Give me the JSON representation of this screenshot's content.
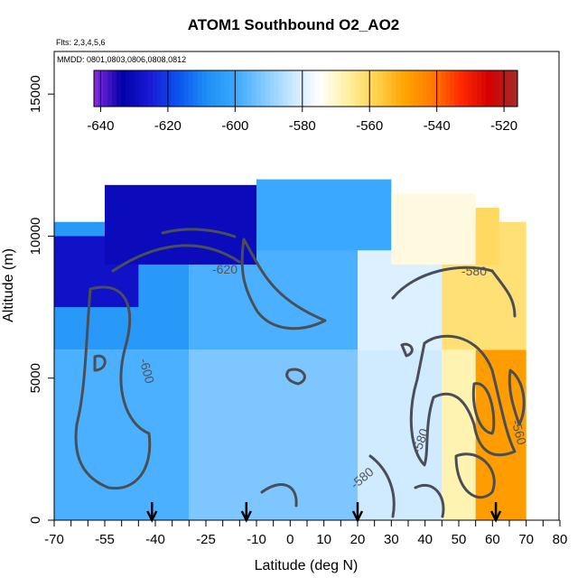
{
  "chart_data": {
    "type": "heatmap",
    "title": "ATOM1 Southbound O2_AO2",
    "flights_note": "Flts: 2,3,4,5,6",
    "dates_note": "MMDD: 0801,0803,0806,0808,0812",
    "xlabel": "Latitude (deg N)",
    "ylabel": "Altitude (m)",
    "xlim": [
      -70,
      80
    ],
    "ylim": [
      0,
      16500
    ],
    "x_ticks": [
      "-70",
      "-55",
      "-40",
      "-25",
      "-10",
      "0",
      "10",
      "20",
      "30",
      "40",
      "50",
      "60",
      "70",
      "80"
    ],
    "y_ticks": [
      "0",
      "5000",
      "10000",
      "15000"
    ],
    "colorbar": {
      "range": [
        -642,
        -516
      ],
      "ticks": [
        "-640",
        "-620",
        "-600",
        "-580",
        "-560",
        "-540",
        "-520"
      ],
      "colors": [
        "#8a2be2",
        "#0000a8",
        "#1a1ad6",
        "#0a55f0",
        "#1e8ff5",
        "#3aa8ff",
        "#80c8ff",
        "#c8e6ff",
        "#ffffff",
        "#fff0a0",
        "#ffd24d",
        "#ffa500",
        "#ff7a00",
        "#ff2a00",
        "#d40000",
        "#a52a2a"
      ]
    },
    "contour_labels": [
      "-620",
      "-600",
      "-580",
      "-580",
      "-580",
      "-560"
    ],
    "arrow_latitudes": [
      -41,
      -13,
      20,
      61
    ],
    "regions": [
      {
        "lat": [
          -70,
          -30
        ],
        "alt": [
          0,
          6000
        ],
        "value": -598
      },
      {
        "lat": [
          -30,
          20
        ],
        "alt": [
          0,
          6000
        ],
        "value": -592
      },
      {
        "lat": [
          20,
          45
        ],
        "alt": [
          0,
          6000
        ],
        "value": -582
      },
      {
        "lat": [
          45,
          55
        ],
        "alt": [
          0,
          6000
        ],
        "value": -568
      },
      {
        "lat": [
          55,
          70
        ],
        "alt": [
          0,
          6000
        ],
        "value": -548
      },
      {
        "lat": [
          -70,
          -30
        ],
        "alt": [
          6000,
          10500
        ],
        "value": -605
      },
      {
        "lat": [
          -30,
          20
        ],
        "alt": [
          6000,
          10500
        ],
        "value": -598
      },
      {
        "lat": [
          20,
          45
        ],
        "alt": [
          6000,
          10500
        ],
        "value": -580
      },
      {
        "lat": [
          45,
          70
        ],
        "alt": [
          6000,
          10500
        ],
        "value": -562
      },
      {
        "lat": [
          -70,
          -45
        ],
        "alt": [
          7500,
          10000
        ],
        "value": -628
      },
      {
        "lat": [
          -55,
          -10
        ],
        "alt": [
          9000,
          11800
        ],
        "value": -630
      },
      {
        "lat": [
          -10,
          30
        ],
        "alt": [
          9500,
          12000
        ],
        "value": -600
      },
      {
        "lat": [
          30,
          55
        ],
        "alt": [
          9000,
          11500
        ],
        "value": -572
      },
      {
        "lat": [
          55,
          62
        ],
        "alt": [
          9000,
          11000
        ],
        "value": -560
      }
    ]
  }
}
